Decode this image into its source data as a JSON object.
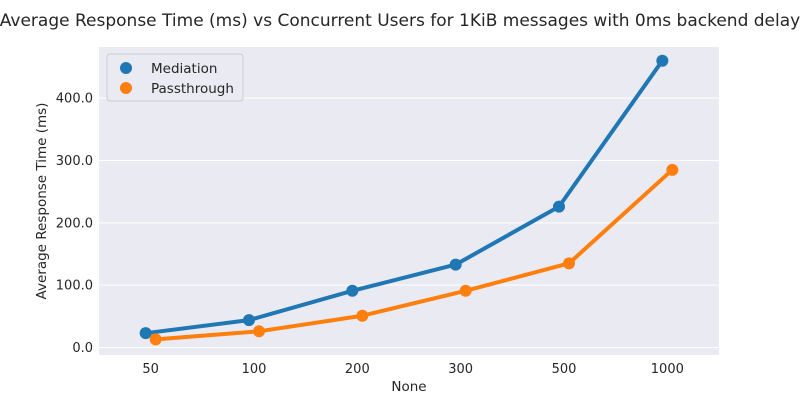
{
  "chart_data": {
    "type": "line",
    "title": "Average Response Time (ms) vs Concurrent Users for 1KiB messages with 0ms backend delay",
    "xlabel": "None",
    "ylabel": "Average Response Time (ms)",
    "categories": [
      "50",
      "100",
      "200",
      "300",
      "500",
      "1000"
    ],
    "ylim": [
      -12,
      482
    ],
    "yticks": [
      "0.0",
      "100.0",
      "200.0",
      "300.0",
      "400.0"
    ],
    "grid": true,
    "legend_position": "top-left",
    "series": [
      {
        "name": "Mediation",
        "color": "#1f77b4",
        "values": [
          23,
          44,
          91,
          133,
          226,
          460
        ]
      },
      {
        "name": "Passthrough",
        "color": "#ff7f0e",
        "values": [
          13,
          26,
          51,
          91,
          135,
          285
        ]
      }
    ]
  }
}
